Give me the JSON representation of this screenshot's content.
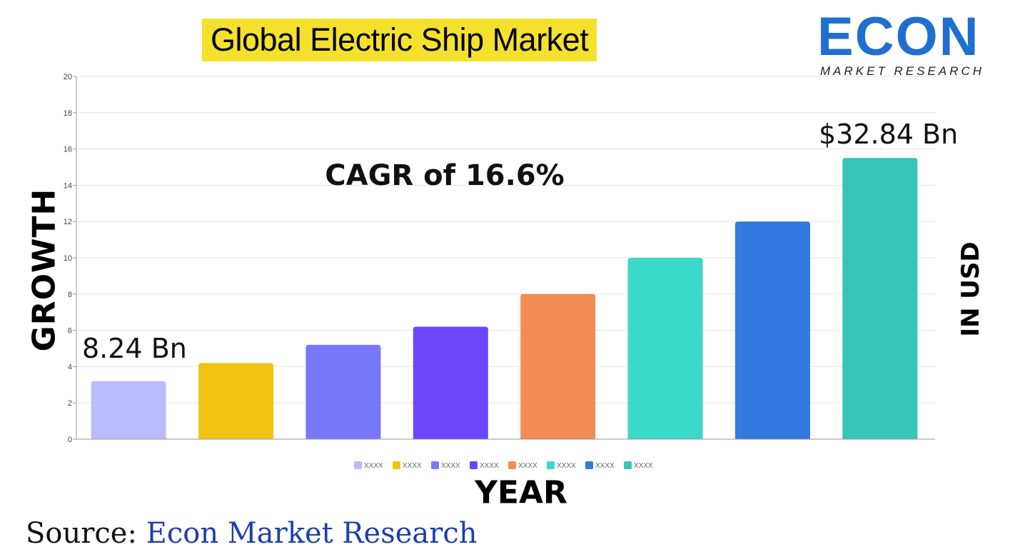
{
  "title": "Global Electric Ship Market",
  "logo": {
    "name": "ECON",
    "tagline": "MARKET RESEARCH"
  },
  "annotations": {
    "cagr": "CAGR of 16.6%",
    "first_value": "8.24 Bn",
    "last_value": "$32.84 Bn"
  },
  "axis_labels": {
    "y_left": "GROWTH",
    "y_right": "IN USD",
    "x": "YEAR"
  },
  "source": {
    "prefix": "Source: ",
    "name": "Econ Market Research"
  },
  "chart_data": {
    "type": "bar",
    "title": "Global Electric Ship Market",
    "xlabel": "YEAR",
    "ylabel": "GROWTH",
    "ylim": [
      0,
      20
    ],
    "yticks": [
      0,
      2,
      4,
      6,
      8,
      10,
      12,
      14,
      16,
      18,
      20
    ],
    "grid": true,
    "legend_position": "bottom",
    "categories": [
      "XXXX",
      "XXXX",
      "XXXX",
      "XXXX",
      "XXXX",
      "XXXX",
      "XXXX",
      "XXXX"
    ],
    "values": [
      3.2,
      4.2,
      5.2,
      6.2,
      8.0,
      10.0,
      12.0,
      15.5
    ],
    "colors": [
      "#babafd",
      "#f2c312",
      "#7878fd",
      "#6b46fb",
      "#f28b54",
      "#3ad9c9",
      "#3279e0",
      "#37c4b9"
    ]
  }
}
